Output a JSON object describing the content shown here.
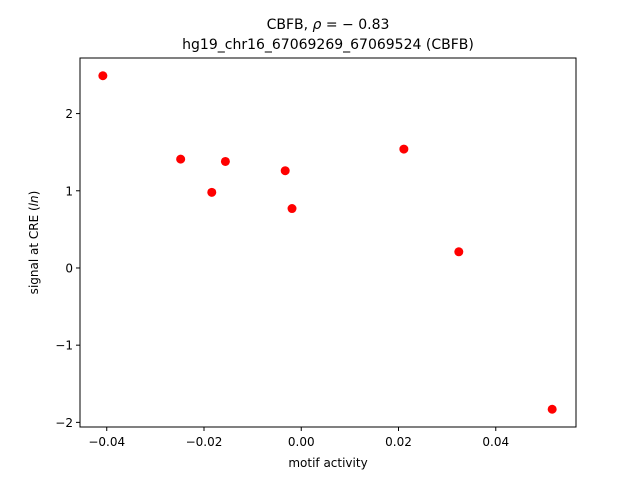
{
  "chart_data": {
    "type": "scatter",
    "title": "CBFB, ρ = − 0.83",
    "subtitle": "hg19_chr16_67069269_67069524 (CBFB)",
    "xlabel": "motif activity",
    "ylabel": "signal at CRE (ln)",
    "xlim": [
      -0.0455,
      0.0565
    ],
    "ylim": [
      -2.06,
      2.72
    ],
    "x_ticks": [
      -0.04,
      -0.02,
      0.0,
      0.02,
      0.04
    ],
    "x_tick_labels": [
      "−0.04",
      "−0.02",
      "0.00",
      "0.02",
      "0.04"
    ],
    "y_ticks": [
      -2,
      -1,
      0,
      1,
      2
    ],
    "y_tick_labels": [
      "−2",
      "−1",
      "0",
      "1",
      "2"
    ],
    "grid": false,
    "series": [
      {
        "color": "#ff0000",
        "x": [
          -0.0408,
          -0.0248,
          -0.0184,
          -0.0156,
          -0.0033,
          -0.0019,
          0.0211,
          0.0324,
          0.0516
        ],
        "y": [
          2.49,
          1.41,
          0.98,
          1.38,
          1.26,
          0.77,
          1.54,
          0.21,
          -1.83
        ]
      }
    ]
  }
}
